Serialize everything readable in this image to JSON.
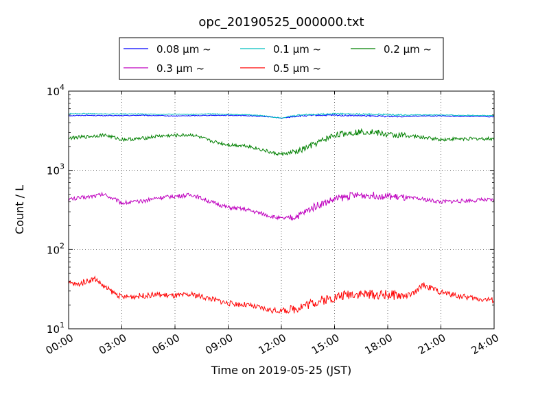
{
  "chart_data": {
    "type": "line",
    "title": "opc_20190525_000000.txt",
    "xlabel": "Time on 2019-05-25 (JST)",
    "ylabel": "Count / L",
    "x_ticks": [
      "00:00",
      "03:00",
      "06:00",
      "09:00",
      "12:00",
      "15:00",
      "18:00",
      "21:00",
      "24:00"
    ],
    "x_tick_hours": [
      0,
      3,
      6,
      9,
      12,
      15,
      18,
      21,
      24
    ],
    "xlim_hours": [
      0,
      24
    ],
    "y_scale": "log",
    "ylim": [
      10,
      10000
    ],
    "y_ticks": [
      {
        "base": "10",
        "exp": "1"
      },
      {
        "base": "10",
        "exp": "2"
      },
      {
        "base": "10",
        "exp": "3"
      },
      {
        "base": "10",
        "exp": "4"
      }
    ],
    "y_tick_values": [
      10,
      100,
      1000,
      10000
    ],
    "grid": true,
    "legend_placement": "top-center, above plot",
    "series": [
      {
        "name": "0.08 μm ~",
        "color": "#0000ff",
        "x_hours": [
          0,
          1,
          2,
          3,
          4,
          5,
          6,
          7,
          8,
          9,
          10,
          11,
          11.5,
          12,
          12.5,
          13,
          14,
          15,
          16,
          17,
          18,
          19,
          20,
          21,
          22,
          23,
          24
        ],
        "values": [
          4900,
          4950,
          4900,
          4900,
          4950,
          4900,
          4850,
          4900,
          4950,
          4950,
          4900,
          4800,
          4700,
          4550,
          4700,
          4850,
          4950,
          4950,
          4900,
          4850,
          4800,
          4800,
          4850,
          4850,
          4800,
          4800,
          4750
        ]
      },
      {
        "name": "0.1 μm ~",
        "color": "#00bfbf",
        "x_hours": [
          0,
          1,
          2,
          3,
          4,
          5,
          6,
          7,
          8,
          9,
          10,
          11,
          11.5,
          12,
          12.5,
          13,
          14,
          15,
          16,
          17,
          18,
          19,
          20,
          21,
          22,
          23,
          24
        ],
        "values": [
          5200,
          5200,
          5150,
          5150,
          5150,
          5100,
          5100,
          5100,
          5150,
          5100,
          5050,
          4900,
          4700,
          4600,
          4800,
          5000,
          5100,
          5200,
          5150,
          5100,
          5050,
          5000,
          5000,
          5000,
          4950,
          4950,
          4900
        ]
      },
      {
        "name": "0.2 μm ~",
        "color": "#008000",
        "x_hours": [
          0,
          1,
          2,
          3,
          4,
          5,
          6,
          7,
          8,
          9,
          10,
          11,
          11.5,
          12,
          12.5,
          13,
          14,
          15,
          16,
          17,
          18,
          19,
          20,
          21,
          22,
          23,
          24
        ],
        "values": [
          2550,
          2650,
          2800,
          2450,
          2500,
          2700,
          2750,
          2800,
          2350,
          2100,
          2050,
          1800,
          1650,
          1600,
          1650,
          1750,
          2200,
          2800,
          3000,
          3100,
          2800,
          2750,
          2600,
          2450,
          2500,
          2500,
          2500
        ]
      },
      {
        "name": "0.3 μm ~",
        "color": "#bf00bf",
        "x_hours": [
          0,
          1,
          2,
          3,
          4,
          5,
          6,
          7,
          8,
          9,
          10,
          11,
          11.5,
          12,
          12.5,
          13,
          14,
          15,
          16,
          17,
          18,
          19,
          20,
          21,
          22,
          23,
          24
        ],
        "values": [
          430,
          460,
          500,
          390,
          400,
          450,
          470,
          490,
          400,
          340,
          320,
          280,
          260,
          245,
          250,
          270,
          360,
          430,
          480,
          490,
          470,
          450,
          430,
          400,
          410,
          420,
          420
        ]
      },
      {
        "name": "0.5 μm ~",
        "color": "#ff0000",
        "x_hours": [
          0,
          0.5,
          1,
          1.5,
          2,
          2.5,
          3,
          4,
          5,
          6,
          7,
          8,
          9,
          10,
          11,
          11.5,
          12,
          12.5,
          13,
          14,
          15,
          16,
          17,
          18,
          19,
          19.5,
          20,
          21,
          22,
          23,
          24
        ],
        "values": [
          38,
          36,
          40,
          43,
          34,
          29,
          25,
          26,
          27,
          26,
          27,
          24,
          21,
          20,
          18,
          17,
          17,
          17,
          19,
          22,
          25,
          28,
          27,
          27,
          26,
          28,
          36,
          29,
          26,
          24,
          23
        ]
      }
    ]
  }
}
